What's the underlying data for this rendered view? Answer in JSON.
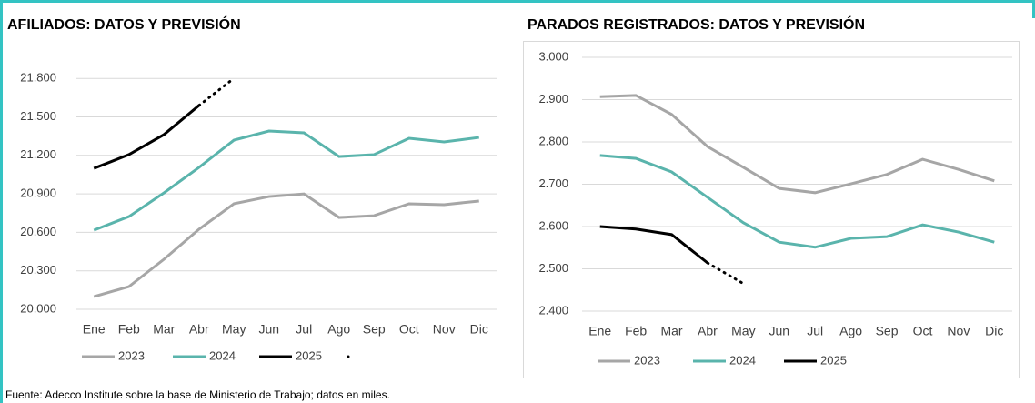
{
  "chart_data": [
    {
      "type": "line",
      "title": "AFILIADOS: DATOS Y PREVISIÓN",
      "categories": [
        "Ene",
        "Feb",
        "Mar",
        "Abr",
        "May",
        "Jun",
        "Jul",
        "Ago",
        "Sep",
        "Oct",
        "Nov",
        "Dic"
      ],
      "ylim": [
        20000,
        22000
      ],
      "yticks": [
        {
          "value": 20000,
          "label": "20.000"
        },
        {
          "value": 20300,
          "label": "20.300"
        },
        {
          "value": 20600,
          "label": "20.600"
        },
        {
          "value": 20900,
          "label": "20.900"
        },
        {
          "value": 21200,
          "label": "21.200"
        },
        {
          "value": 21500,
          "label": "21.500"
        },
        {
          "value": 21800,
          "label": "21.800"
        }
      ],
      "grid": true,
      "series": [
        {
          "name": "2023",
          "color": "#a6a6a6",
          "values": [
            20099,
            20177,
            20390,
            20624,
            20823,
            20879,
            20900,
            20716,
            20730,
            20823,
            20816,
            20844
          ]
        },
        {
          "name": "2024",
          "color": "#5ab4ac",
          "values": [
            20617,
            20723,
            20908,
            21106,
            21319,
            21390,
            21376,
            21191,
            21206,
            21333,
            21305,
            21340
          ]
        },
        {
          "name": "2025",
          "color": "#000000",
          "values": [
            21099,
            21206,
            21362,
            21589,
            null,
            null,
            null,
            null,
            null,
            null,
            null,
            null
          ]
        },
        {
          "color": "#000000",
          "style": "dotted",
          "in_legend": true,
          "values": [
            null,
            null,
            null,
            21589,
            21801,
            null,
            null,
            null,
            null,
            null,
            null,
            null
          ]
        }
      ]
    },
    {
      "type": "line",
      "title": "PARADOS REGISTRADOS: DATOS Y PREVISIÓN",
      "categories": [
        "Ene",
        "Feb",
        "Mar",
        "Abr",
        "May",
        "Jun",
        "Jul",
        "Ago",
        "Sep",
        "Oct",
        "Nov",
        "Dic"
      ],
      "ylim": [
        2400,
        3000
      ],
      "yticks": [
        {
          "value": 2400,
          "label": "2.400"
        },
        {
          "value": 2500,
          "label": "2.500"
        },
        {
          "value": 2600,
          "label": "2.600"
        },
        {
          "value": 2700,
          "label": "2.700"
        },
        {
          "value": 2800,
          "label": "2.800"
        },
        {
          "value": 2900,
          "label": "2.900"
        },
        {
          "value": 3000,
          "label": "3.000"
        }
      ],
      "grid": true,
      "series": [
        {
          "name": "2023",
          "color": "#a6a6a6",
          "values": [
            2907,
            2910,
            2865,
            2789,
            2740,
            2690,
            2680,
            2701,
            2723,
            2759,
            2735,
            2708
          ]
        },
        {
          "name": "2024",
          "color": "#5ab4ac",
          "values": [
            2768,
            2761,
            2729,
            2669,
            2609,
            2563,
            2551,
            2572,
            2576,
            2604,
            2587,
            2563
          ]
        },
        {
          "name": "2025",
          "color": "#000000",
          "values": [
            2600,
            2594,
            2581,
            2514,
            null,
            null,
            null,
            null,
            null,
            null,
            null,
            null
          ]
        },
        {
          "color": "#000000",
          "style": "dotted",
          "in_legend": false,
          "values": [
            null,
            null,
            null,
            2514,
            2465,
            null,
            null,
            null,
            null,
            null,
            null,
            null
          ]
        }
      ]
    }
  ],
  "source": "Fuente: Adecco Institute sobre la base de Ministerio de Trabajo; datos en miles."
}
